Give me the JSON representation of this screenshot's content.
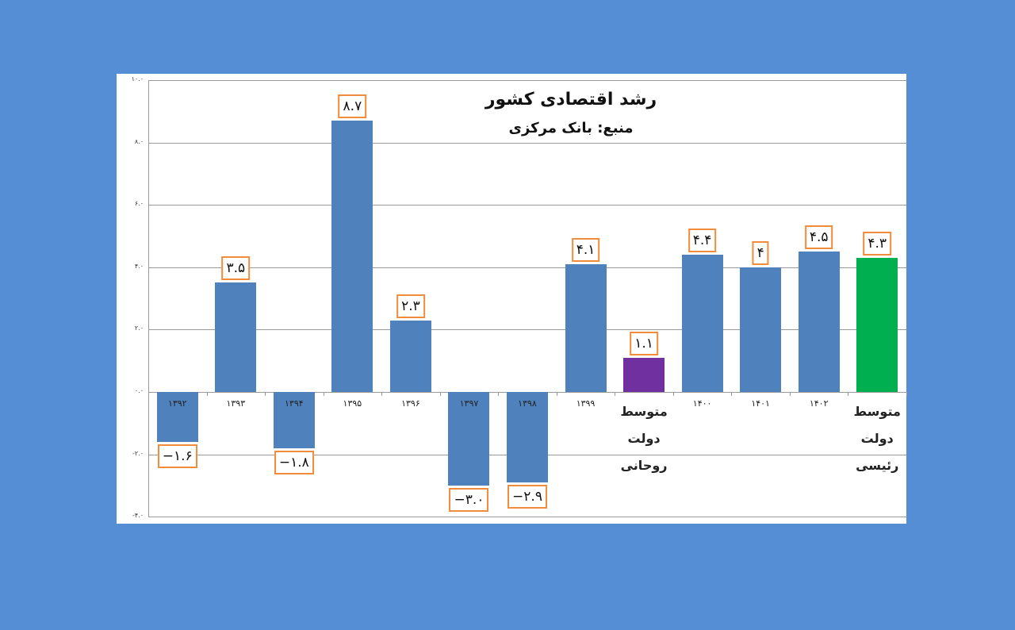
{
  "chart_data": {
    "type": "bar",
    "title": "رشد اقتصادی کشور",
    "subtitle": "منبع: بانک مرکزی",
    "xlabel": "",
    "ylabel": "",
    "ylim": [
      -4,
      10
    ],
    "yticks": [
      "۱۰.۰",
      "۸.۰",
      "۶.۰",
      "۴.۰",
      "۲.۰",
      "۰.۰",
      "-۲.۰",
      "-۴.۰"
    ],
    "ytick_values": [
      10,
      8,
      6,
      4,
      2,
      0,
      -2,
      -4
    ],
    "grid": true,
    "legend": null,
    "categories": [
      "۱۳۹۲",
      "۱۳۹۳",
      "۱۳۹۴",
      "۱۳۹۵",
      "۱۳۹۶",
      "۱۳۹۷",
      "۱۳۹۸",
      "۱۳۹۹",
      "متوسط دولت روحانی",
      "۱۴۰۰",
      "۱۴۰۱",
      "۱۴۰۲",
      "متوسط دولت رئیسی"
    ],
    "categories_latin": [
      "1392",
      "1393",
      "1394",
      "1395",
      "1396",
      "1397",
      "1398",
      "1399",
      "Rouhani govt average",
      "1400",
      "1401",
      "1402",
      "Raisi govt average"
    ],
    "values": [
      -1.6,
      3.5,
      -1.8,
      8.7,
      2.3,
      -3.0,
      -2.9,
      4.1,
      1.1,
      4.4,
      4.0,
      4.5,
      4.3
    ],
    "data_labels": [
      "−۱.۶",
      "۳.۵",
      "−۱.۸",
      "۸.۷",
      "۲.۳",
      "−۳.۰",
      "−۲.۹",
      "۴.۱",
      "۱.۱",
      "۴.۴",
      "۴",
      "۴.۵",
      "۴.۳"
    ],
    "colors": [
      "#4f81bd",
      "#4f81bd",
      "#4f81bd",
      "#4f81bd",
      "#4f81bd",
      "#4f81bd",
      "#4f81bd",
      "#4f81bd",
      "#7030a0",
      "#4f81bd",
      "#4f81bd",
      "#4f81bd",
      "#00b050"
    ]
  },
  "colors": {
    "background": "#558ed5",
    "bar_default": "#4f81bd",
    "bar_rouhani_avg": "#7030a0",
    "bar_raisi_avg": "#00b050",
    "label_border": "#f08c3c"
  }
}
